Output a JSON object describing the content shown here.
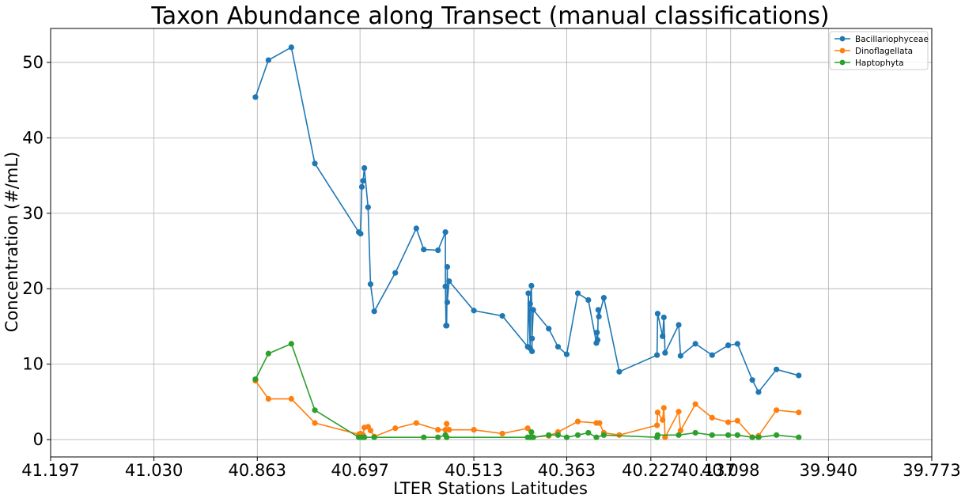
{
  "chart_data": {
    "type": "line",
    "title": "Taxon Abundance along Transect (manual classifications)",
    "xlabel": "LTER Stations Latitudes",
    "ylabel": "Concentration (#/mL)",
    "xlim": [
      41.197,
      39.773
    ],
    "ylim": [
      -2.3,
      54.5
    ],
    "x_ticks": [
      "41.197",
      "41.030",
      "40.863",
      "40.697",
      "40.513",
      "40.363",
      "40.227",
      "40.137",
      "40.098",
      "39.940",
      "39.773"
    ],
    "x_tick_positions": [
      41.197,
      41.03,
      40.863,
      40.697,
      40.513,
      40.363,
      40.227,
      40.137,
      40.098,
      39.94,
      39.773
    ],
    "y_ticks": [
      0,
      10,
      20,
      30,
      40,
      50
    ],
    "grid": true,
    "legend_position": "top-right",
    "series": [
      {
        "name": "Bacillariophyceae",
        "color": "#1f77b4",
        "points": [
          [
            40.866,
            45.4
          ],
          [
            40.845,
            50.3
          ],
          [
            40.808,
            52.0
          ],
          [
            40.77,
            36.6
          ],
          [
            40.699,
            27.5
          ],
          [
            40.696,
            27.3
          ],
          [
            40.694,
            33.5
          ],
          [
            40.692,
            34.3
          ],
          [
            40.69,
            36.0
          ],
          [
            40.684,
            30.8
          ],
          [
            40.68,
            20.6
          ],
          [
            40.674,
            17.0
          ],
          [
            40.64,
            22.1
          ],
          [
            40.606,
            28.0
          ],
          [
            40.594,
            25.2
          ],
          [
            40.571,
            25.1
          ],
          [
            40.559,
            27.5
          ],
          [
            40.559,
            20.3
          ],
          [
            40.558,
            15.1
          ],
          [
            40.557,
            15.1
          ],
          [
            40.556,
            22.9
          ],
          [
            40.556,
            18.2
          ],
          [
            40.553,
            21.0
          ],
          [
            40.513,
            17.1
          ],
          [
            40.467,
            16.4
          ],
          [
            40.426,
            12.3
          ],
          [
            40.425,
            19.4
          ],
          [
            40.422,
            12.1
          ],
          [
            40.422,
            18.0
          ],
          [
            40.42,
            20.4
          ],
          [
            40.419,
            11.7
          ],
          [
            40.419,
            13.4
          ],
          [
            40.417,
            17.2
          ],
          [
            40.392,
            14.7
          ],
          [
            40.377,
            12.3
          ],
          [
            40.363,
            11.3
          ],
          [
            40.345,
            19.4
          ],
          [
            40.328,
            18.5
          ],
          [
            40.315,
            12.8
          ],
          [
            40.314,
            14.2
          ],
          [
            40.313,
            13.2
          ],
          [
            40.312,
            17.2
          ],
          [
            40.311,
            16.3
          ],
          [
            40.303,
            18.8
          ],
          [
            40.278,
            9.0
          ],
          [
            40.217,
            11.2
          ],
          [
            40.216,
            16.7
          ],
          [
            40.208,
            13.7
          ],
          [
            40.206,
            16.2
          ],
          [
            40.204,
            11.5
          ],
          [
            40.182,
            15.2
          ],
          [
            40.179,
            11.1
          ],
          [
            40.155,
            12.7
          ],
          [
            40.128,
            11.2
          ],
          [
            40.102,
            12.5
          ],
          [
            40.087,
            12.7
          ],
          [
            40.063,
            7.9
          ],
          [
            40.053,
            6.3
          ],
          [
            40.024,
            9.3
          ],
          [
            39.988,
            8.5
          ]
        ]
      },
      {
        "name": "Dinoflagellata",
        "color": "#ff7f0e",
        "points": [
          [
            40.866,
            7.8
          ],
          [
            40.845,
            5.4
          ],
          [
            40.808,
            5.4
          ],
          [
            40.77,
            2.2
          ],
          [
            40.699,
            0.7
          ],
          [
            40.696,
            0.8
          ],
          [
            40.694,
            0.5
          ],
          [
            40.692,
            0.6
          ],
          [
            40.69,
            1.6
          ],
          [
            40.684,
            1.7
          ],
          [
            40.68,
            1.2
          ],
          [
            40.674,
            0.4
          ],
          [
            40.64,
            1.5
          ],
          [
            40.606,
            2.2
          ],
          [
            40.571,
            1.3
          ],
          [
            40.559,
            1.3
          ],
          [
            40.557,
            2.1
          ],
          [
            40.553,
            1.3
          ],
          [
            40.513,
            1.3
          ],
          [
            40.467,
            0.8
          ],
          [
            40.426,
            1.5
          ],
          [
            40.42,
            0.3
          ],
          [
            40.392,
            0.5
          ],
          [
            40.377,
            1.0
          ],
          [
            40.345,
            2.4
          ],
          [
            40.315,
            2.2
          ],
          [
            40.31,
            2.2
          ],
          [
            40.303,
            0.9
          ],
          [
            40.278,
            0.6
          ],
          [
            40.217,
            1.9
          ],
          [
            40.216,
            3.6
          ],
          [
            40.208,
            2.6
          ],
          [
            40.206,
            4.2
          ],
          [
            40.204,
            0.3
          ],
          [
            40.182,
            3.7
          ],
          [
            40.179,
            1.2
          ],
          [
            40.155,
            4.7
          ],
          [
            40.128,
            2.9
          ],
          [
            40.102,
            2.3
          ],
          [
            40.087,
            2.5
          ],
          [
            40.063,
            0.3
          ],
          [
            40.053,
            0.5
          ],
          [
            40.024,
            3.9
          ],
          [
            39.988,
            3.6
          ]
        ]
      },
      {
        "name": "Haptophyta",
        "color": "#2ca02c",
        "points": [
          [
            40.866,
            8.0
          ],
          [
            40.845,
            11.4
          ],
          [
            40.808,
            12.7
          ],
          [
            40.77,
            3.9
          ],
          [
            40.699,
            0.3
          ],
          [
            40.694,
            0.3
          ],
          [
            40.69,
            0.3
          ],
          [
            40.674,
            0.3
          ],
          [
            40.594,
            0.3
          ],
          [
            40.571,
            0.3
          ],
          [
            40.559,
            0.6
          ],
          [
            40.557,
            0.3
          ],
          [
            40.426,
            0.3
          ],
          [
            40.422,
            0.3
          ],
          [
            40.42,
            1.0
          ],
          [
            40.417,
            0.3
          ],
          [
            40.392,
            0.6
          ],
          [
            40.377,
            0.6
          ],
          [
            40.363,
            0.3
          ],
          [
            40.345,
            0.6
          ],
          [
            40.328,
            0.9
          ],
          [
            40.315,
            0.3
          ],
          [
            40.303,
            0.6
          ],
          [
            40.217,
            0.3
          ],
          [
            40.216,
            0.6
          ],
          [
            40.182,
            0.6
          ],
          [
            40.155,
            0.9
          ],
          [
            40.128,
            0.6
          ],
          [
            40.102,
            0.6
          ],
          [
            40.087,
            0.6
          ],
          [
            40.063,
            0.3
          ],
          [
            40.053,
            0.3
          ],
          [
            40.024,
            0.6
          ],
          [
            39.988,
            0.3
          ]
        ]
      }
    ]
  }
}
